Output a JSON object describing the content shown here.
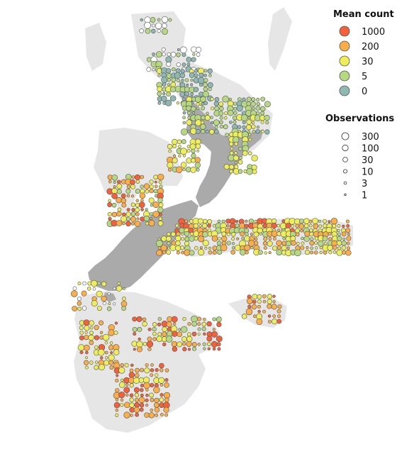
{
  "legend": {
    "mean_count": {
      "title": "Mean count",
      "entries": [
        {
          "label": "1000",
          "color": "#f4603a"
        },
        {
          "label": "200",
          "color": "#fbad48"
        },
        {
          "label": "30",
          "color": "#eeee5a"
        },
        {
          "label": "5",
          "color": "#b6d882"
        },
        {
          "label": "0",
          "color": "#8fb8b2"
        }
      ]
    },
    "observations": {
      "title": "Observations",
      "entries": [
        {
          "label": "300"
        },
        {
          "label": "100"
        },
        {
          "label": "30"
        },
        {
          "label": "10"
        },
        {
          "label": "3"
        },
        {
          "label": "1"
        }
      ]
    }
  },
  "colors": {
    "land": "#aaaaaa",
    "seafloor": "#e6e6e6",
    "outline": "#555555"
  }
}
